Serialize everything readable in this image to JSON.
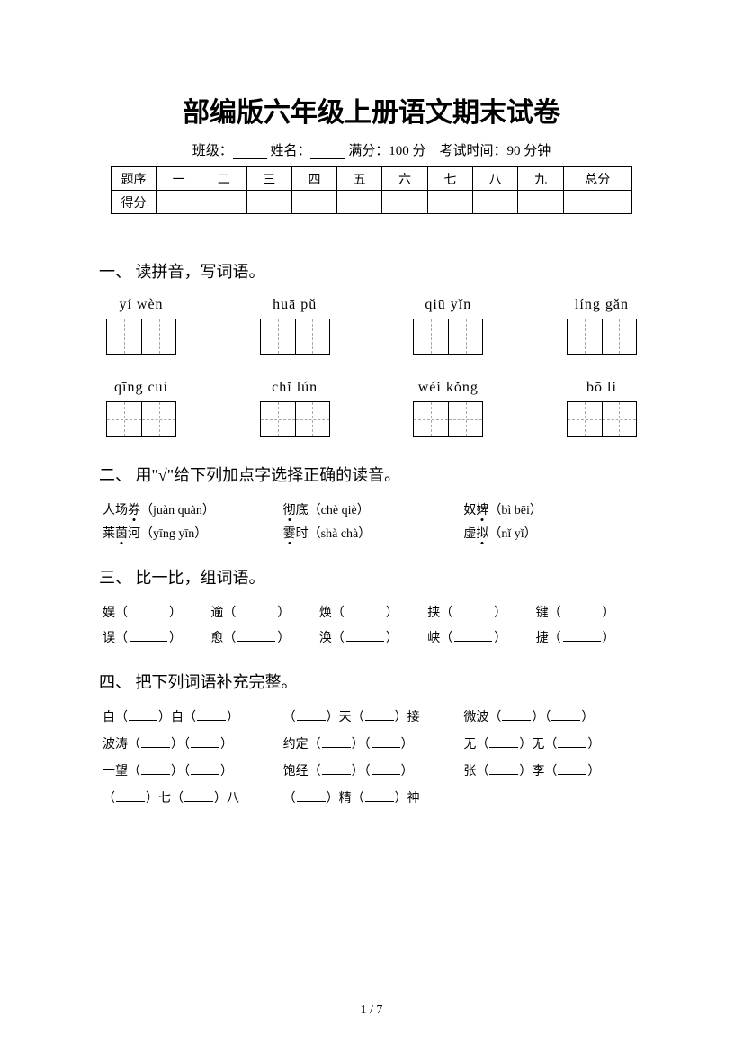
{
  "title": "部编版六年级上册语文期末试卷",
  "info": {
    "class_label": "班级：",
    "name_label": "姓名：",
    "full_score_label": "满分：",
    "full_score_value": "100 分",
    "time_label": "考试时间：",
    "time_value": "90 分钟"
  },
  "score_table": {
    "header": [
      "题序",
      "一",
      "二",
      "三",
      "四",
      "五",
      "六",
      "七",
      "八",
      "九",
      "总分"
    ],
    "row2_label": "得分"
  },
  "s1": {
    "heading": "一、 读拼音，写词语。",
    "row1": [
      {
        "pinyin": "yí wèn",
        "cells": 2
      },
      {
        "pinyin": "huā pǔ",
        "cells": 2
      },
      {
        "pinyin": "qiū yǐn",
        "cells": 2
      },
      {
        "pinyin": "líng gǎn",
        "cells": 2
      }
    ],
    "row2": [
      {
        "pinyin": "qīng cuì",
        "cells": 2
      },
      {
        "pinyin": "chǐ lún",
        "cells": 2
      },
      {
        "pinyin": "wéi kǒng",
        "cells": 2
      },
      {
        "pinyin": "bō li",
        "cells": 2
      }
    ]
  },
  "s2": {
    "heading": "二、 用\"√\"给下列加点字选择正确的读音。",
    "row1": [
      {
        "word_pre": "人场",
        "word_dot": "券",
        "pinyin": "（juàn quàn）"
      },
      {
        "word_pre": "",
        "word_dot": "彻",
        "word_post": "底",
        "pinyin": "（chè qiè）"
      },
      {
        "word_pre": "奴",
        "word_dot": "婢",
        "pinyin": "（bì bēi）"
      }
    ],
    "row2": [
      {
        "word_pre": "莱",
        "word_dot": "茵",
        "word_post": "河",
        "pinyin": "（yīng yīn）"
      },
      {
        "word_pre": "",
        "word_dot": "霎",
        "word_post": "时",
        "pinyin": "（shà chà）"
      },
      {
        "word_pre": "虚",
        "word_dot": "拟",
        "pinyin": "（nǐ yǐ）"
      }
    ]
  },
  "s3": {
    "heading": "三、 比一比，组词语。",
    "row1": [
      "娱",
      "逾",
      "焕",
      "挟",
      "键"
    ],
    "row2": [
      "误",
      "愈",
      "涣",
      "峡",
      "捷"
    ]
  },
  "s4": {
    "heading": "四、 把下列词语补充完整。",
    "rows": [
      [
        {
          "parts": [
            "自（",
            "）自（",
            "）"
          ]
        },
        {
          "parts": [
            "（",
            "）天（",
            "）接"
          ]
        },
        {
          "parts": [
            "微波（",
            "）（",
            "）"
          ]
        }
      ],
      [
        {
          "parts": [
            "波涛（",
            "）（",
            "）"
          ]
        },
        {
          "parts": [
            "约定（",
            "）（",
            "）"
          ]
        },
        {
          "parts": [
            "无（",
            "）无（",
            "）"
          ]
        }
      ],
      [
        {
          "parts": [
            "一望（",
            "）（",
            "）"
          ]
        },
        {
          "parts": [
            "饱经（",
            "）（",
            "）"
          ]
        },
        {
          "parts": [
            "张（",
            "）李（",
            "）"
          ]
        }
      ],
      [
        {
          "parts": [
            "（",
            "）七（",
            "）八"
          ]
        },
        {
          "parts": [
            "（",
            "）精（",
            "）神"
          ]
        },
        {
          "parts": []
        }
      ]
    ]
  },
  "page_num": "1 / 7"
}
